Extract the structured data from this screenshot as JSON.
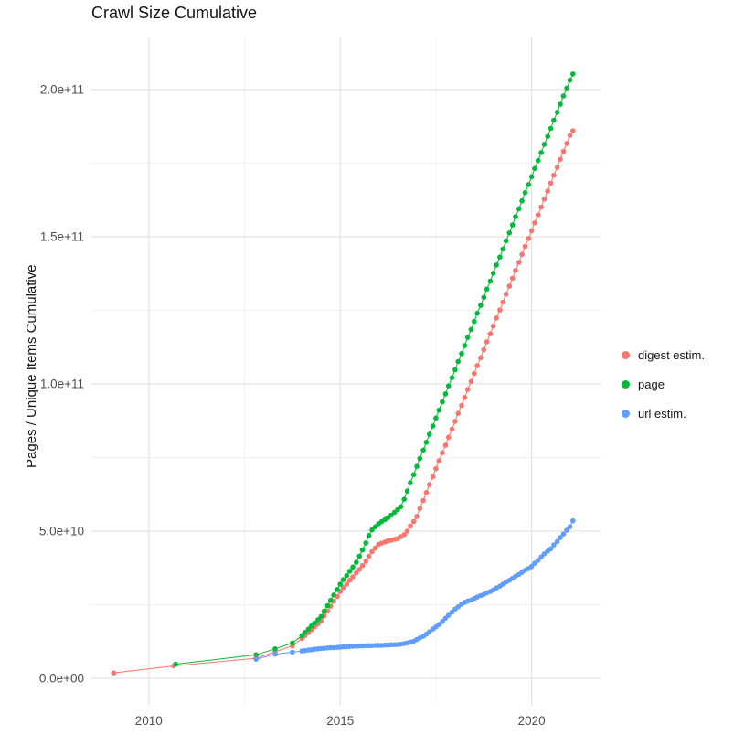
{
  "chart_data": {
    "type": "scatter",
    "title": "Crawl Size Cumulative",
    "xlabel": "",
    "ylabel": "Pages / Unique Items Cumulative",
    "xlim": [
      2008.5,
      2021.8
    ],
    "ylim_e9": [
      -9,
      218
    ],
    "xticks": [
      2010,
      2015,
      2020
    ],
    "xtick_labels": [
      "2010",
      "2015",
      "2020"
    ],
    "yticks_e9": [
      0,
      50,
      100,
      150,
      200
    ],
    "ytick_labels": [
      "0.0e+00",
      "5.0e+10",
      "1.0e+11",
      "1.5e+11",
      "2.0e+11"
    ],
    "minor_xticks": [
      2012.5,
      2017.5
    ],
    "minor_yticks_e9": [
      25,
      75,
      125,
      175
    ],
    "grid_major_color": "#e3e3e3",
    "grid_minor_color": "#f1f1f1",
    "axis_text_color": "#4d4d4d",
    "legend_position": "right",
    "value_unit": "1e9 pages (values below are in billions)",
    "series": [
      {
        "name": "digest estim.",
        "color": "#F8766D",
        "points_e9": [
          [
            2009.08,
            1.8
          ],
          [
            2010.65,
            4.2
          ],
          [
            2012.8,
            6.8
          ],
          [
            2013.3,
            9.0
          ],
          [
            2013.75,
            11.0
          ],
          [
            2014.0,
            13.5
          ],
          [
            2014.08,
            14.5
          ],
          [
            2014.17,
            15.5
          ],
          [
            2014.25,
            16.5
          ],
          [
            2014.33,
            17.5
          ],
          [
            2014.42,
            18.5
          ],
          [
            2014.5,
            19.5
          ],
          [
            2014.58,
            21.2
          ],
          [
            2014.67,
            22.8
          ],
          [
            2014.75,
            24.5
          ],
          [
            2014.83,
            26.2
          ],
          [
            2014.92,
            27.8
          ],
          [
            2015.0,
            29.5
          ],
          [
            2015.08,
            30.8
          ],
          [
            2015.17,
            32.0
          ],
          [
            2015.25,
            33.3
          ],
          [
            2015.33,
            34.5
          ],
          [
            2015.42,
            35.8
          ],
          [
            2015.5,
            37.0
          ],
          [
            2015.58,
            38.3
          ],
          [
            2015.67,
            39.8
          ],
          [
            2015.75,
            41.5
          ],
          [
            2015.83,
            43.0
          ],
          [
            2015.92,
            44.3
          ],
          [
            2016.0,
            45.5
          ],
          [
            2016.08,
            45.9
          ],
          [
            2016.17,
            46.3
          ],
          [
            2016.25,
            46.7
          ],
          [
            2016.33,
            46.9
          ],
          [
            2016.42,
            47.2
          ],
          [
            2016.5,
            47.5
          ],
          [
            2016.58,
            48.1
          ],
          [
            2016.67,
            48.8
          ],
          [
            2016.75,
            50.0
          ],
          [
            2016.83,
            51.7
          ],
          [
            2016.92,
            53.3
          ],
          [
            2017.0,
            55.0
          ],
          [
            2017.08,
            57.7
          ],
          [
            2017.17,
            60.4
          ],
          [
            2017.25,
            63.1
          ],
          [
            2017.33,
            65.8
          ],
          [
            2017.42,
            68.5
          ],
          [
            2017.5,
            71.2
          ],
          [
            2017.58,
            73.9
          ],
          [
            2017.67,
            76.6
          ],
          [
            2017.75,
            79.2
          ],
          [
            2017.83,
            81.9
          ],
          [
            2017.92,
            84.6
          ],
          [
            2018.0,
            87.3
          ],
          [
            2018.08,
            90.0
          ],
          [
            2018.17,
            92.7
          ],
          [
            2018.25,
            95.4
          ],
          [
            2018.33,
            98.1
          ],
          [
            2018.42,
            100.8
          ],
          [
            2018.5,
            103.5
          ],
          [
            2018.58,
            106.2
          ],
          [
            2018.67,
            108.9
          ],
          [
            2018.75,
            111.6
          ],
          [
            2018.83,
            114.3
          ],
          [
            2018.92,
            117.0
          ],
          [
            2019.0,
            119.7
          ],
          [
            2019.08,
            122.4
          ],
          [
            2019.17,
            125.1
          ],
          [
            2019.25,
            127.8
          ],
          [
            2019.33,
            130.5
          ],
          [
            2019.42,
            133.2
          ],
          [
            2019.5,
            135.9
          ],
          [
            2019.58,
            138.6
          ],
          [
            2019.67,
            141.3
          ],
          [
            2019.75,
            144.0
          ],
          [
            2019.83,
            146.7
          ],
          [
            2019.92,
            149.4
          ],
          [
            2020.0,
            152.0
          ],
          [
            2020.08,
            154.7
          ],
          [
            2020.17,
            157.4
          ],
          [
            2020.25,
            160.1
          ],
          [
            2020.33,
            162.8
          ],
          [
            2020.42,
            165.5
          ],
          [
            2020.5,
            168.2
          ],
          [
            2020.58,
            170.9
          ],
          [
            2020.67,
            173.6
          ],
          [
            2020.75,
            176.3
          ],
          [
            2020.83,
            179.0
          ],
          [
            2020.92,
            181.7
          ],
          [
            2021.0,
            184.4
          ],
          [
            2021.08,
            186.0
          ]
        ]
      },
      {
        "name": "page",
        "color": "#00BA38",
        "points_e9": [
          [
            2010.7,
            4.8
          ],
          [
            2012.8,
            8.0
          ],
          [
            2013.3,
            10.0
          ],
          [
            2013.75,
            12.0
          ],
          [
            2014.0,
            14.5
          ],
          [
            2014.08,
            15.6
          ],
          [
            2014.17,
            16.7
          ],
          [
            2014.25,
            17.8
          ],
          [
            2014.33,
            18.8
          ],
          [
            2014.42,
            19.9
          ],
          [
            2014.5,
            21.0
          ],
          [
            2014.58,
            22.8
          ],
          [
            2014.67,
            24.7
          ],
          [
            2014.75,
            26.5
          ],
          [
            2014.83,
            28.3
          ],
          [
            2014.92,
            30.2
          ],
          [
            2015.0,
            32.0
          ],
          [
            2015.08,
            33.5
          ],
          [
            2015.17,
            34.9
          ],
          [
            2015.25,
            36.4
          ],
          [
            2015.33,
            37.8
          ],
          [
            2015.42,
            39.4
          ],
          [
            2015.5,
            41.5
          ],
          [
            2015.58,
            43.6
          ],
          [
            2015.67,
            46.0
          ],
          [
            2015.75,
            48.5
          ],
          [
            2015.83,
            50.4
          ],
          [
            2015.92,
            51.5
          ],
          [
            2016.0,
            52.5
          ],
          [
            2016.08,
            53.2
          ],
          [
            2016.17,
            53.9
          ],
          [
            2016.25,
            54.6
          ],
          [
            2016.33,
            55.4
          ],
          [
            2016.42,
            56.4
          ],
          [
            2016.5,
            57.3
          ],
          [
            2016.58,
            58.3
          ],
          [
            2016.67,
            60.8
          ],
          [
            2016.75,
            63.6
          ],
          [
            2016.83,
            66.4
          ],
          [
            2016.92,
            69.2
          ],
          [
            2017.0,
            72.0
          ],
          [
            2017.08,
            74.7
          ],
          [
            2017.17,
            77.5
          ],
          [
            2017.25,
            80.2
          ],
          [
            2017.33,
            82.9
          ],
          [
            2017.42,
            85.7
          ],
          [
            2017.5,
            88.4
          ],
          [
            2017.58,
            91.1
          ],
          [
            2017.67,
            93.9
          ],
          [
            2017.75,
            96.6
          ],
          [
            2017.83,
            99.3
          ],
          [
            2017.92,
            102.1
          ],
          [
            2018.0,
            104.8
          ],
          [
            2018.08,
            107.6
          ],
          [
            2018.17,
            110.3
          ],
          [
            2018.25,
            113.0
          ],
          [
            2018.33,
            115.8
          ],
          [
            2018.42,
            118.5
          ],
          [
            2018.5,
            121.2
          ],
          [
            2018.58,
            124.0
          ],
          [
            2018.67,
            126.7
          ],
          [
            2018.75,
            129.4
          ],
          [
            2018.83,
            132.2
          ],
          [
            2018.92,
            134.9
          ],
          [
            2019.0,
            137.6
          ],
          [
            2019.08,
            140.4
          ],
          [
            2019.17,
            143.1
          ],
          [
            2019.25,
            145.8
          ],
          [
            2019.33,
            148.6
          ],
          [
            2019.42,
            151.3
          ],
          [
            2019.5,
            154.0
          ],
          [
            2019.58,
            156.8
          ],
          [
            2019.67,
            159.5
          ],
          [
            2019.75,
            162.2
          ],
          [
            2019.83,
            165.0
          ],
          [
            2019.92,
            167.7
          ],
          [
            2020.0,
            170.4
          ],
          [
            2020.08,
            173.2
          ],
          [
            2020.17,
            175.9
          ],
          [
            2020.25,
            178.6
          ],
          [
            2020.33,
            181.4
          ],
          [
            2020.42,
            184.1
          ],
          [
            2020.5,
            186.8
          ],
          [
            2020.58,
            189.6
          ],
          [
            2020.67,
            192.3
          ],
          [
            2020.75,
            195.0
          ],
          [
            2020.83,
            197.8
          ],
          [
            2020.92,
            200.5
          ],
          [
            2021.0,
            203.2
          ],
          [
            2021.08,
            205.3
          ]
        ]
      },
      {
        "name": "url estim.",
        "color": "#619CFF",
        "points_e9": [
          [
            2012.8,
            6.5
          ],
          [
            2013.3,
            8.2
          ],
          [
            2013.75,
            8.9
          ],
          [
            2014.0,
            9.3
          ],
          [
            2014.08,
            9.4
          ],
          [
            2014.17,
            9.6
          ],
          [
            2014.25,
            9.7
          ],
          [
            2014.33,
            9.9
          ],
          [
            2014.42,
            10.0
          ],
          [
            2014.5,
            10.1
          ],
          [
            2014.58,
            10.2
          ],
          [
            2014.67,
            10.3
          ],
          [
            2014.75,
            10.4
          ],
          [
            2014.83,
            10.4
          ],
          [
            2014.92,
            10.5
          ],
          [
            2015.0,
            10.6
          ],
          [
            2015.08,
            10.7
          ],
          [
            2015.17,
            10.7
          ],
          [
            2015.25,
            10.8
          ],
          [
            2015.33,
            10.9
          ],
          [
            2015.42,
            10.9
          ],
          [
            2015.5,
            11.0
          ],
          [
            2015.58,
            11.0
          ],
          [
            2015.67,
            11.1
          ],
          [
            2015.75,
            11.1
          ],
          [
            2015.83,
            11.1
          ],
          [
            2015.92,
            11.2
          ],
          [
            2016.0,
            11.2
          ],
          [
            2016.08,
            11.2
          ],
          [
            2016.17,
            11.3
          ],
          [
            2016.25,
            11.3
          ],
          [
            2016.33,
            11.4
          ],
          [
            2016.42,
            11.4
          ],
          [
            2016.5,
            11.5
          ],
          [
            2016.58,
            11.6
          ],
          [
            2016.67,
            11.8
          ],
          [
            2016.75,
            12.0
          ],
          [
            2016.83,
            12.3
          ],
          [
            2016.92,
            12.6
          ],
          [
            2017.0,
            13.2
          ],
          [
            2017.08,
            13.7
          ],
          [
            2017.17,
            14.3
          ],
          [
            2017.25,
            15.0
          ],
          [
            2017.33,
            15.8
          ],
          [
            2017.42,
            16.7
          ],
          [
            2017.5,
            17.5
          ],
          [
            2017.58,
            18.3
          ],
          [
            2017.67,
            19.3
          ],
          [
            2017.75,
            20.4
          ],
          [
            2017.83,
            21.4
          ],
          [
            2017.92,
            22.5
          ],
          [
            2018.0,
            23.5
          ],
          [
            2018.08,
            24.3
          ],
          [
            2018.17,
            25.2
          ],
          [
            2018.25,
            25.8
          ],
          [
            2018.33,
            26.2
          ],
          [
            2018.42,
            26.6
          ],
          [
            2018.5,
            27.1
          ],
          [
            2018.58,
            27.6
          ],
          [
            2018.67,
            28.1
          ],
          [
            2018.75,
            28.5
          ],
          [
            2018.83,
            29.0
          ],
          [
            2018.92,
            29.5
          ],
          [
            2019.0,
            30.0
          ],
          [
            2019.08,
            30.7
          ],
          [
            2019.17,
            31.3
          ],
          [
            2019.25,
            32.0
          ],
          [
            2019.33,
            32.7
          ],
          [
            2019.42,
            33.3
          ],
          [
            2019.5,
            34.0
          ],
          [
            2019.58,
            34.7
          ],
          [
            2019.67,
            35.3
          ],
          [
            2019.75,
            36.0
          ],
          [
            2019.83,
            36.7
          ],
          [
            2019.92,
            37.3
          ],
          [
            2020.0,
            38.0
          ],
          [
            2020.08,
            39.1
          ],
          [
            2020.17,
            40.1
          ],
          [
            2020.25,
            41.2
          ],
          [
            2020.33,
            42.3
          ],
          [
            2020.42,
            43.2
          ],
          [
            2020.5,
            44.0
          ],
          [
            2020.58,
            45.3
          ],
          [
            2020.67,
            46.5
          ],
          [
            2020.75,
            47.8
          ],
          [
            2020.83,
            49.0
          ],
          [
            2020.92,
            50.3
          ],
          [
            2021.0,
            51.5
          ],
          [
            2021.08,
            53.5
          ]
        ]
      }
    ]
  }
}
